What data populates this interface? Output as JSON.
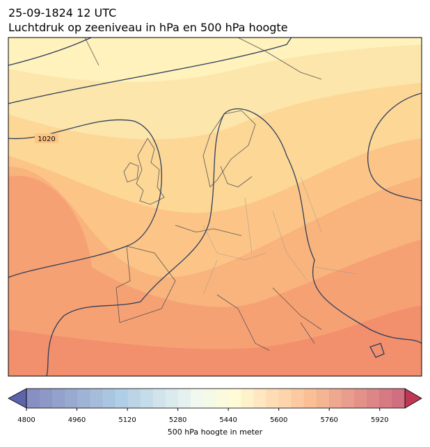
{
  "header": {
    "title": "25-09-1824 12 UTC",
    "subtitle": "Luchtdruk op zeeniveau in hPa en 500 hPa hoogte"
  },
  "map": {
    "contour_labels": [
      "1020"
    ]
  },
  "colorbar": {
    "lim": [
      4800,
      6000
    ],
    "step": 40,
    "ticks": [
      4800,
      4960,
      5120,
      5280,
      5440,
      5600,
      5760,
      5920
    ],
    "label": "500 hPa hoogte in meter"
  }
}
